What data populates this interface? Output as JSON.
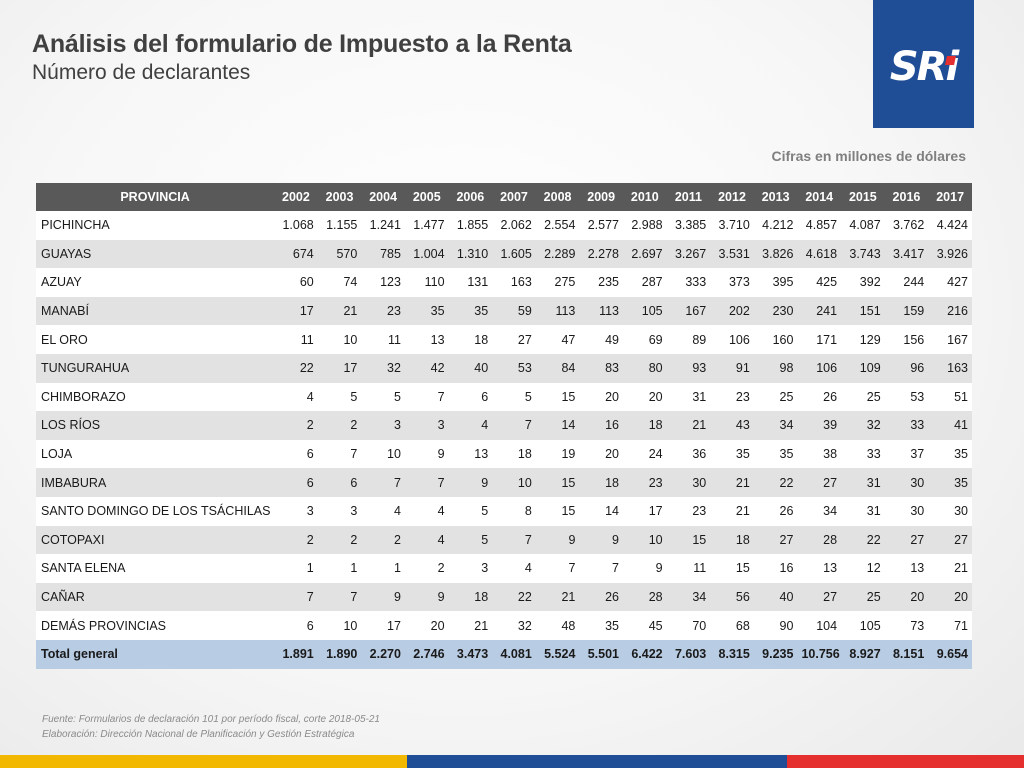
{
  "header": {
    "title": "Análisis del formulario de Impuesto a la Renta",
    "subtitle": "Número de declarantes"
  },
  "logo": {
    "text": "SRi",
    "brand_color": "#1f4e96",
    "dot_color": "#e52e2e"
  },
  "figures_note": "Cifras en millones de dólares",
  "table": {
    "columns": [
      "PROVINCIA",
      "2002",
      "2003",
      "2004",
      "2005",
      "2006",
      "2007",
      "2008",
      "2009",
      "2010",
      "2011",
      "2012",
      "2013",
      "2014",
      "2015",
      "2016",
      "2017"
    ],
    "rows": [
      [
        "PICHINCHA",
        "1.068",
        "1.155",
        "1.241",
        "1.477",
        "1.855",
        "2.062",
        "2.554",
        "2.577",
        "2.988",
        "3.385",
        "3.710",
        "4.212",
        "4.857",
        "4.087",
        "3.762",
        "4.424"
      ],
      [
        "GUAYAS",
        "674",
        "570",
        "785",
        "1.004",
        "1.310",
        "1.605",
        "2.289",
        "2.278",
        "2.697",
        "3.267",
        "3.531",
        "3.826",
        "4.618",
        "3.743",
        "3.417",
        "3.926"
      ],
      [
        "AZUAY",
        "60",
        "74",
        "123",
        "110",
        "131",
        "163",
        "275",
        "235",
        "287",
        "333",
        "373",
        "395",
        "425",
        "392",
        "244",
        "427"
      ],
      [
        "MANABÍ",
        "17",
        "21",
        "23",
        "35",
        "35",
        "59",
        "113",
        "113",
        "105",
        "167",
        "202",
        "230",
        "241",
        "151",
        "159",
        "216"
      ],
      [
        "EL ORO",
        "11",
        "10",
        "11",
        "13",
        "18",
        "27",
        "47",
        "49",
        "69",
        "89",
        "106",
        "160",
        "171",
        "129",
        "156",
        "167"
      ],
      [
        "TUNGURAHUA",
        "22",
        "17",
        "32",
        "42",
        "40",
        "53",
        "84",
        "83",
        "80",
        "93",
        "91",
        "98",
        "106",
        "109",
        "96",
        "163"
      ],
      [
        "CHIMBORAZO",
        "4",
        "5",
        "5",
        "7",
        "6",
        "5",
        "15",
        "20",
        "20",
        "31",
        "23",
        "25",
        "26",
        "25",
        "53",
        "51"
      ],
      [
        "LOS RÍOS",
        "2",
        "2",
        "3",
        "3",
        "4",
        "7",
        "14",
        "16",
        "18",
        "21",
        "43",
        "34",
        "39",
        "32",
        "33",
        "41"
      ],
      [
        "LOJA",
        "6",
        "7",
        "10",
        "9",
        "13",
        "18",
        "19",
        "20",
        "24",
        "36",
        "35",
        "35",
        "38",
        "33",
        "37",
        "35"
      ],
      [
        "IMBABURA",
        "6",
        "6",
        "7",
        "7",
        "9",
        "10",
        "15",
        "18",
        "23",
        "30",
        "21",
        "22",
        "27",
        "31",
        "30",
        "35"
      ],
      [
        "SANTO DOMINGO DE LOS TSÁCHILAS",
        "3",
        "3",
        "4",
        "4",
        "5",
        "8",
        "15",
        "14",
        "17",
        "23",
        "21",
        "26",
        "34",
        "31",
        "30",
        "30"
      ],
      [
        "COTOPAXI",
        "2",
        "2",
        "2",
        "4",
        "5",
        "7",
        "9",
        "9",
        "10",
        "15",
        "18",
        "27",
        "28",
        "22",
        "27",
        "27"
      ],
      [
        "SANTA ELENA",
        "1",
        "1",
        "1",
        "2",
        "3",
        "4",
        "7",
        "7",
        "9",
        "11",
        "15",
        "16",
        "13",
        "12",
        "13",
        "21"
      ],
      [
        "CAÑAR",
        "7",
        "7",
        "9",
        "9",
        "18",
        "22",
        "21",
        "26",
        "28",
        "34",
        "56",
        "40",
        "27",
        "25",
        "20",
        "20"
      ],
      [
        "DEMÁS PROVINCIAS",
        "6",
        "10",
        "17",
        "20",
        "21",
        "32",
        "48",
        "35",
        "45",
        "70",
        "68",
        "90",
        "104",
        "105",
        "73",
        "71"
      ]
    ],
    "total": [
      "Total general",
      "1.891",
      "1.890",
      "2.270",
      "2.746",
      "3.473",
      "4.081",
      "5.524",
      "5.501",
      "6.422",
      "7.603",
      "8.315",
      "9.235",
      "10.756",
      "8.927",
      "8.151",
      "9.654"
    ]
  },
  "footer": {
    "source": "Fuente: Formularios de declaración 101 por período fiscal, corte 2018-05-21",
    "elaboration": "Elaboración: Dirección Nacional de Planificación y Gestión Estratégica"
  },
  "bottom_bar_colors": [
    "#f2b800",
    "#1f4e96",
    "#e52e2e"
  ]
}
